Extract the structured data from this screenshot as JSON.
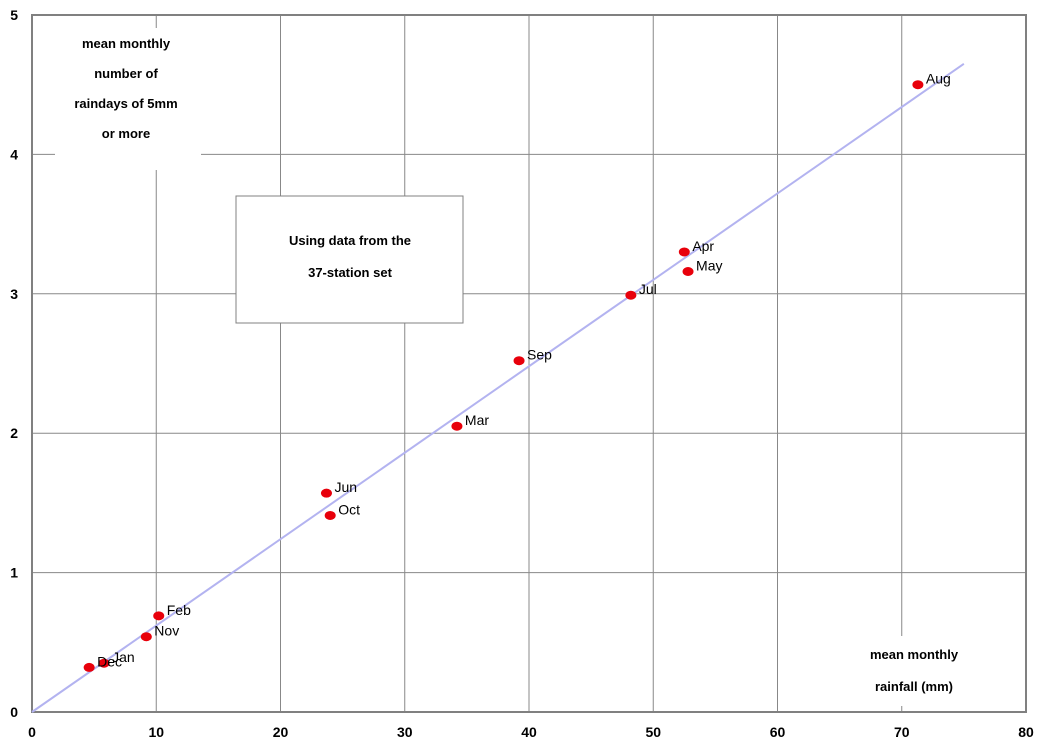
{
  "chart_data": {
    "type": "scatter",
    "title": "",
    "ylabel_lines": [
      "mean monthly",
      "number of",
      "raindays of 5mm",
      "or more"
    ],
    "xlabel_lines": [
      "mean monthly",
      "rainfall (mm)"
    ],
    "note_lines": [
      "Using data from the",
      "37-station set"
    ],
    "xlim": [
      0,
      80
    ],
    "ylim": [
      0,
      5
    ],
    "xticks": [
      0,
      10,
      20,
      30,
      40,
      50,
      60,
      70,
      80
    ],
    "yticks": [
      0,
      1,
      2,
      3,
      4,
      5
    ],
    "grid": true,
    "points": [
      {
        "label": "Jan",
        "x": 5.8,
        "y": 0.35
      },
      {
        "label": "Feb",
        "x": 10.2,
        "y": 0.69
      },
      {
        "label": "Mar",
        "x": 34.2,
        "y": 2.05
      },
      {
        "label": "Apr",
        "x": 52.5,
        "y": 3.3
      },
      {
        "label": "May",
        "x": 52.8,
        "y": 3.16
      },
      {
        "label": "Jun",
        "x": 23.7,
        "y": 1.57
      },
      {
        "label": "Jul",
        "x": 48.2,
        "y": 2.99
      },
      {
        "label": "Aug",
        "x": 71.3,
        "y": 4.5
      },
      {
        "label": "Sep",
        "x": 39.2,
        "y": 2.52
      },
      {
        "label": "Oct",
        "x": 24.0,
        "y": 1.41
      },
      {
        "label": "Nov",
        "x": 9.2,
        "y": 0.54
      },
      {
        "label": "Dec",
        "x": 4.6,
        "y": 0.32
      }
    ],
    "trendline": {
      "x": [
        0,
        75
      ],
      "y": [
        0,
        4.65
      ]
    },
    "colors": {
      "points": "#e8000b",
      "trendline": "#b3b3f0",
      "grid": "#888888",
      "frame": "#808080"
    }
  }
}
